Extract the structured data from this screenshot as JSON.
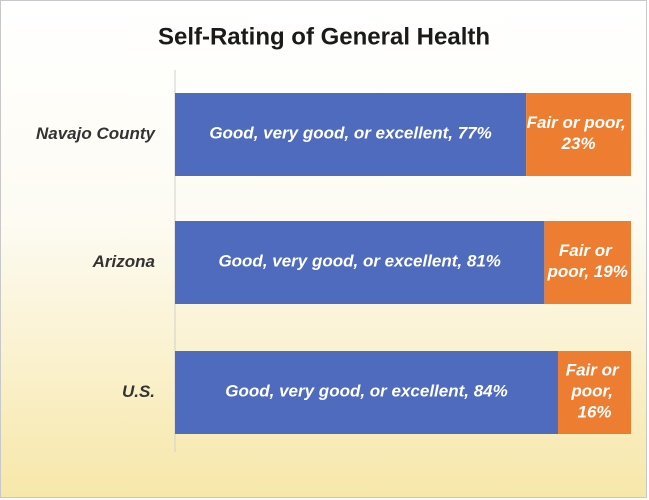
{
  "chart_data": {
    "type": "stacked-barh",
    "title": "Self-Rating of General Health",
    "categories": [
      "Navajo County",
      "Arizona",
      "U.S."
    ],
    "xlim": [
      0,
      100
    ],
    "series": [
      {
        "color": "#4f6bbd",
        "values": [
          77,
          81,
          84
        ],
        "value_labels": [
          "Good, very good, or excellent, 77%",
          "Good, very good, or excellent, 81%",
          "Good, very good, or excellent, 84%"
        ]
      },
      {
        "color": "#ed7d31",
        "values": [
          23,
          19,
          16
        ],
        "value_labels": [
          "Fair or poor, 23%",
          "Fair or poor, 19%",
          "Fair or poor, 16%"
        ]
      }
    ]
  }
}
